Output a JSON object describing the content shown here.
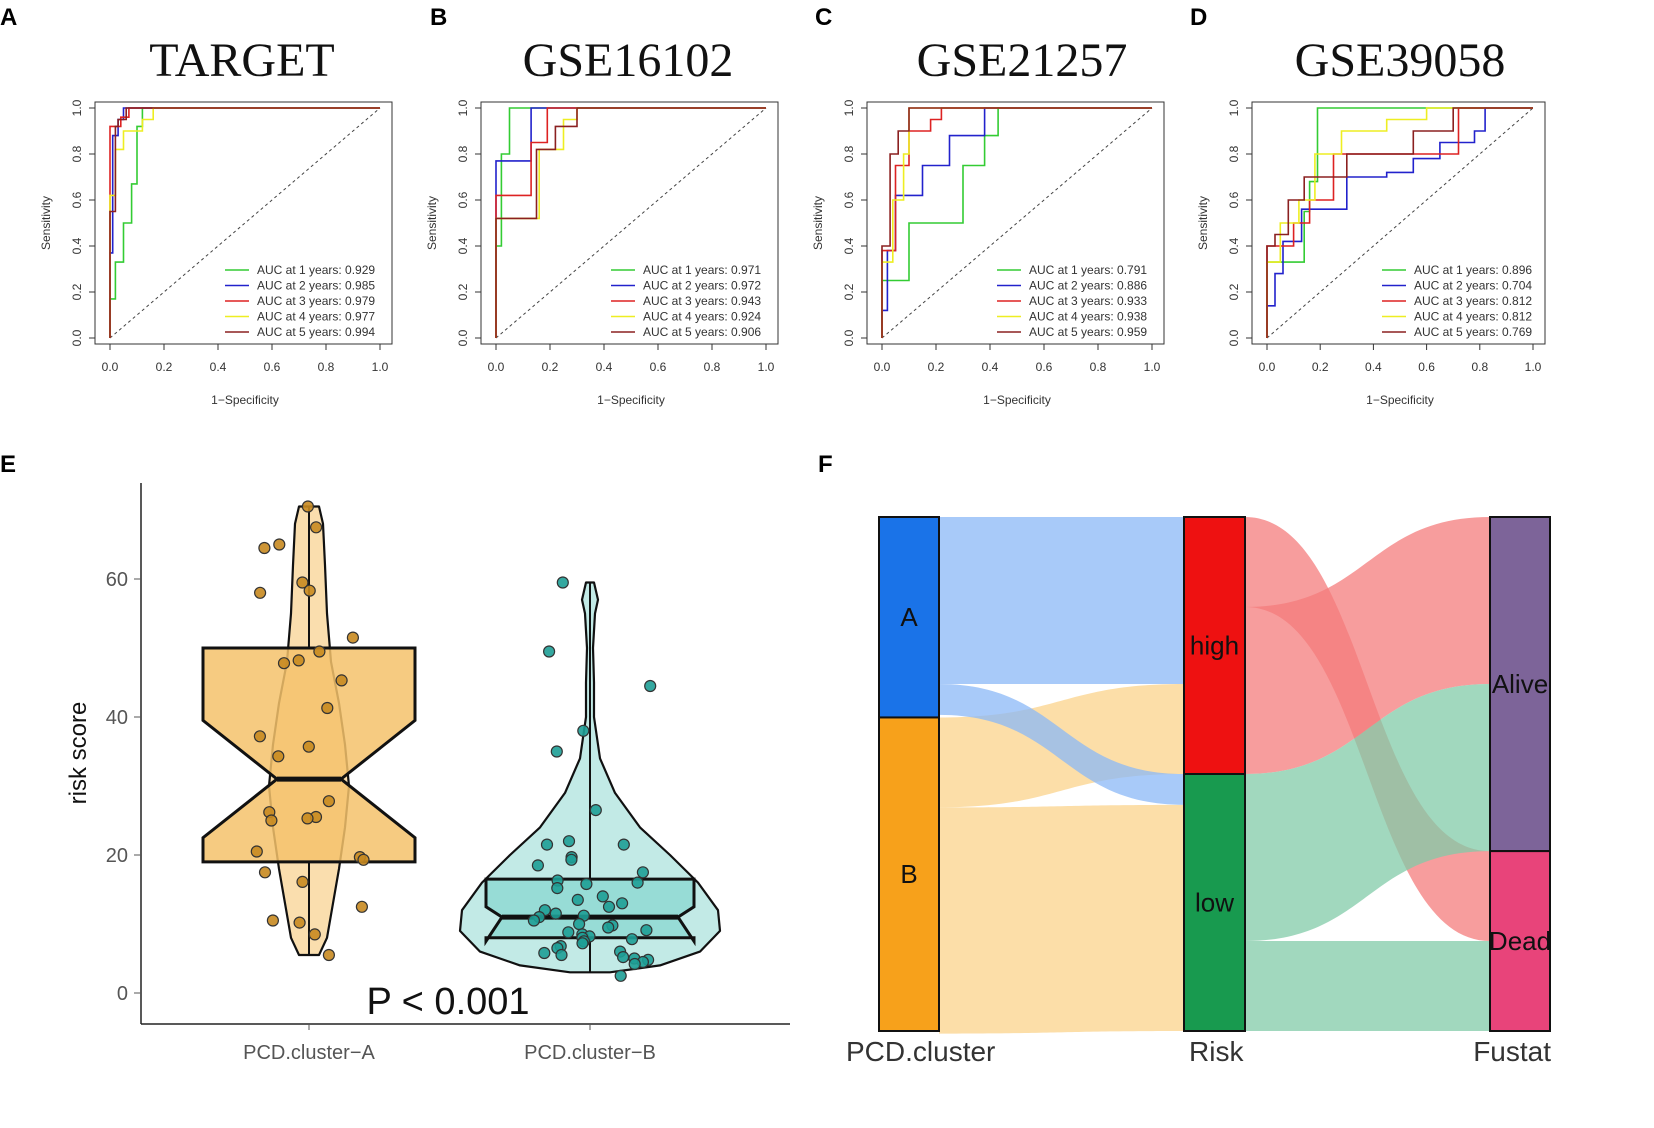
{
  "panels": {
    "A": "A",
    "B": "B",
    "C": "C",
    "D": "D",
    "E": "E",
    "F": "F"
  },
  "colors": {
    "year1": "#33cc33",
    "year2": "#2222cc",
    "year3": "#dd2222",
    "year4": "#eeee22",
    "year5": "#8b2020",
    "clusterA": "#f5c26b",
    "clusterA_dark": "#c88a20",
    "clusterB": "#8fd9d2",
    "clusterB_dark": "#1e9e96",
    "nodeA": "#1a73e8",
    "nodeB": "#f7a11b",
    "nodeHigh": "#ee1111",
    "nodeLow": "#189a4f",
    "nodeAlive": "#7d6499",
    "nodeDead": "#e8447a",
    "flowA": "#8bb8f7",
    "flowB": "#fbd38b",
    "flowHigh": "#f47c7c",
    "flowLow": "#82cba8"
  },
  "chart_data": [
    {
      "type": "line",
      "panel": "A",
      "title": "TARGET",
      "xlabel": "1−Specificity",
      "ylabel": "Sensitivity",
      "xlim": [
        0,
        1
      ],
      "ylim": [
        0,
        1
      ],
      "xticks": [
        "0.0",
        "0.2",
        "0.4",
        "0.6",
        "0.8",
        "1.0"
      ],
      "yticks": [
        "0.0",
        "0.2",
        "0.4",
        "0.6",
        "0.8",
        "1.0"
      ],
      "legend_position": "bottom-right",
      "series": [
        {
          "name": "AUC at 1 years: 0.929",
          "x": [
            0,
            0,
            0.02,
            0.02,
            0.05,
            0.05,
            0.08,
            0.08,
            0.1,
            0.1,
            0.12,
            0.12,
            1
          ],
          "y": [
            0,
            0.17,
            0.17,
            0.33,
            0.33,
            0.5,
            0.5,
            0.67,
            0.67,
            0.92,
            0.92,
            1,
            1
          ]
        },
        {
          "name": "AUC at 2 years: 0.985",
          "x": [
            0,
            0,
            0.01,
            0.01,
            0.03,
            0.03,
            0.05,
            0.05,
            0.08,
            1
          ],
          "y": [
            0,
            0.37,
            0.37,
            0.88,
            0.88,
            0.95,
            0.95,
            1,
            1,
            1
          ]
        },
        {
          "name": "AUC at 3 years: 0.979",
          "x": [
            0,
            0,
            0.04,
            0.04,
            0.07,
            0.07,
            0.12,
            1
          ],
          "y": [
            0,
            0.92,
            0.92,
            0.96,
            0.96,
            1,
            1,
            1
          ]
        },
        {
          "name": "AUC at 4 years: 0.977",
          "x": [
            0,
            0,
            0.02,
            0.02,
            0.05,
            0.05,
            0.12,
            0.12,
            0.16,
            0.16,
            1
          ],
          "y": [
            0,
            0.62,
            0.62,
            0.82,
            0.82,
            0.9,
            0.9,
            0.95,
            0.95,
            1,
            1
          ]
        },
        {
          "name": "AUC at 5 years: 0.994",
          "x": [
            0,
            0,
            0.02,
            0.02,
            0.03,
            0.03,
            0.06,
            0.06,
            1
          ],
          "y": [
            0,
            0.55,
            0.55,
            0.92,
            0.92,
            0.95,
            0.95,
            1,
            1
          ]
        }
      ]
    },
    {
      "type": "line",
      "panel": "B",
      "title": "GSE16102",
      "xlabel": "1−Specificity",
      "ylabel": "Sensitivity",
      "xlim": [
        0,
        1
      ],
      "ylim": [
        0,
        1
      ],
      "xticks": [
        "0.0",
        "0.2",
        "0.4",
        "0.6",
        "0.8",
        "1.0"
      ],
      "yticks": [
        "0.0",
        "0.2",
        "0.4",
        "0.6",
        "0.8",
        "1.0"
      ],
      "legend_position": "bottom-right",
      "series": [
        {
          "name": "AUC at 1 years: 0.971",
          "x": [
            0,
            0,
            0.02,
            0.02,
            0.05,
            0.05,
            0.1,
            0.1,
            1
          ],
          "y": [
            0,
            0.4,
            0.4,
            0.8,
            0.8,
            1,
            1,
            1,
            1
          ]
        },
        {
          "name": "AUC at 2 years: 0.972",
          "x": [
            0,
            0,
            0.13,
            0.13,
            1
          ],
          "y": [
            0,
            0.77,
            0.77,
            1,
            1
          ]
        },
        {
          "name": "AUC at 3 years: 0.943",
          "x": [
            0,
            0,
            0.13,
            0.13,
            0.19,
            0.19,
            1
          ],
          "y": [
            0,
            0.62,
            0.62,
            0.85,
            0.85,
            1,
            1
          ]
        },
        {
          "name": "AUC at 4 years: 0.924",
          "x": [
            0,
            0,
            0.16,
            0.16,
            0.25,
            0.25,
            0.3,
            0.3,
            1
          ],
          "y": [
            0,
            0.52,
            0.52,
            0.82,
            0.82,
            0.95,
            0.95,
            1,
            1
          ]
        },
        {
          "name": "AUC at 5 years: 0.906",
          "x": [
            0,
            0,
            0.15,
            0.15,
            0.22,
            0.22,
            0.3,
            0.3,
            1
          ],
          "y": [
            0,
            0.52,
            0.52,
            0.82,
            0.82,
            0.92,
            0.92,
            1,
            1
          ]
        }
      ]
    },
    {
      "type": "line",
      "panel": "C",
      "title": "GSE21257",
      "xlabel": "1−Specificity",
      "ylabel": "Sensitivity",
      "xlim": [
        0,
        1
      ],
      "ylim": [
        0,
        1
      ],
      "xticks": [
        "0.0",
        "0.2",
        "0.4",
        "0.6",
        "0.8",
        "1.0"
      ],
      "yticks": [
        "0.0",
        "0.2",
        "0.4",
        "0.6",
        "0.8",
        "1.0"
      ],
      "legend_position": "bottom-right",
      "series": [
        {
          "name": "AUC at 1 years: 0.791",
          "x": [
            0,
            0,
            0.1,
            0.1,
            0.3,
            0.3,
            0.38,
            0.38,
            0.43,
            0.43,
            1
          ],
          "y": [
            0,
            0.25,
            0.25,
            0.5,
            0.5,
            0.75,
            0.75,
            0.88,
            0.88,
            1,
            1
          ]
        },
        {
          "name": "AUC at 2 years: 0.886",
          "x": [
            0,
            0,
            0.02,
            0.02,
            0.05,
            0.05,
            0.15,
            0.15,
            0.25,
            0.25,
            0.38,
            0.38,
            1
          ],
          "y": [
            0,
            0.12,
            0.12,
            0.38,
            0.38,
            0.62,
            0.62,
            0.75,
            0.75,
            0.88,
            0.88,
            1,
            1
          ]
        },
        {
          "name": "AUC at 3 years: 0.933",
          "x": [
            0,
            0,
            0.05,
            0.05,
            0.1,
            0.1,
            0.18,
            0.18,
            0.22,
            0.22,
            1
          ],
          "y": [
            0,
            0.38,
            0.38,
            0.75,
            0.75,
            0.9,
            0.9,
            0.95,
            0.95,
            1,
            1
          ]
        },
        {
          "name": "AUC at 4 years: 0.938",
          "x": [
            0,
            0,
            0.04,
            0.04,
            0.08,
            0.08,
            0.1,
            0.1,
            1
          ],
          "y": [
            0,
            0.33,
            0.33,
            0.6,
            0.6,
            0.8,
            0.8,
            1,
            1
          ]
        },
        {
          "name": "AUC at 5 years: 0.959",
          "x": [
            0,
            0,
            0.03,
            0.03,
            0.06,
            0.06,
            0.1,
            0.1,
            1
          ],
          "y": [
            0,
            0.4,
            0.4,
            0.8,
            0.8,
            0.9,
            0.9,
            1,
            1
          ]
        }
      ]
    },
    {
      "type": "line",
      "panel": "D",
      "title": "GSE39058",
      "xlabel": "1−Specificity",
      "ylabel": "Sensitivity",
      "xlim": [
        0,
        1
      ],
      "ylim": [
        0,
        1
      ],
      "xticks": [
        "0.0",
        "0.2",
        "0.4",
        "0.6",
        "0.8",
        "1.0"
      ],
      "yticks": [
        "0.0",
        "0.2",
        "0.4",
        "0.6",
        "0.8",
        "1.0"
      ],
      "legend_position": "bottom-right",
      "series": [
        {
          "name": "AUC at 1 years: 0.896",
          "x": [
            0,
            0,
            0.14,
            0.14,
            0.16,
            0.16,
            0.19,
            0.19,
            1
          ],
          "y": [
            0,
            0.33,
            0.33,
            0.55,
            0.55,
            0.68,
            0.68,
            1,
            1
          ]
        },
        {
          "name": "AUC at 2 years: 0.704",
          "x": [
            0,
            0,
            0.03,
            0.03,
            0.06,
            0.06,
            0.13,
            0.13,
            0.3,
            0.3,
            0.45,
            0.45,
            0.55,
            0.55,
            0.65,
            0.65,
            0.78,
            0.78,
            0.82,
            0.82,
            1
          ],
          "y": [
            0,
            0.14,
            0.14,
            0.28,
            0.28,
            0.42,
            0.42,
            0.56,
            0.56,
            0.7,
            0.7,
            0.72,
            0.72,
            0.78,
            0.78,
            0.85,
            0.85,
            0.9,
            0.9,
            1,
            1
          ]
        },
        {
          "name": "AUC at 3 years: 0.812",
          "x": [
            0,
            0,
            0.1,
            0.1,
            0.16,
            0.16,
            0.25,
            0.25,
            0.72,
            0.72,
            1
          ],
          "y": [
            0,
            0.4,
            0.4,
            0.5,
            0.5,
            0.6,
            0.6,
            0.8,
            0.8,
            1,
            1
          ]
        },
        {
          "name": "AUC at 4 years: 0.812",
          "x": [
            0,
            0,
            0.05,
            0.05,
            0.12,
            0.12,
            0.18,
            0.18,
            0.28,
            0.28,
            0.45,
            0.45,
            0.6,
            0.6,
            0.72,
            0.72,
            1
          ],
          "y": [
            0,
            0.33,
            0.33,
            0.5,
            0.5,
            0.6,
            0.6,
            0.8,
            0.8,
            0.9,
            0.9,
            0.95,
            0.95,
            1,
            1,
            1,
            1
          ]
        },
        {
          "name": "AUC at 5 years: 0.769",
          "x": [
            0,
            0,
            0.03,
            0.03,
            0.08,
            0.08,
            0.14,
            0.14,
            0.3,
            0.3,
            0.55,
            0.55,
            0.7,
            0.7,
            1
          ],
          "y": [
            0,
            0.4,
            0.4,
            0.45,
            0.45,
            0.6,
            0.6,
            0.7,
            0.7,
            0.8,
            0.8,
            0.9,
            0.9,
            1,
            1
          ]
        }
      ]
    },
    {
      "type": "violin",
      "panel": "E",
      "title": "",
      "xlabel": "",
      "ylabel": "risk score",
      "ylim": [
        -5,
        75
      ],
      "yticks": [
        0,
        20,
        40,
        60
      ],
      "categories": [
        "PCD.cluster−A",
        "PCD.cluster−B"
      ],
      "annotation": "P < 0.001",
      "boxes": [
        {
          "name": "PCD.cluster−A",
          "q1": 19,
          "median": 31,
          "q3": 50,
          "notch_low": 22.5,
          "notch_high": 39.5,
          "min": 5.5,
          "max": 70.5
        },
        {
          "name": "PCD.cluster−B",
          "q1": 8,
          "median": 11,
          "q3": 16.5,
          "notch_low": 7.5,
          "notch_high": 12.5,
          "min": 3,
          "max": 59.5
        }
      ],
      "points": [
        {
          "group": "PCD.cluster−A",
          "values": [
            70.5,
            67.5,
            64.5,
            65,
            59.5,
            58.3,
            58,
            51.5,
            49.5,
            48.2,
            47.8,
            45.3,
            41.3,
            37.2,
            35.7,
            34.3,
            27.8,
            26.2,
            25.5,
            25.3,
            25,
            20.5,
            19.7,
            19.3,
            17.5,
            16.1,
            12.5,
            10.5,
            10.2,
            8.5,
            5.5
          ]
        },
        {
          "group": "PCD.cluster−B",
          "values": [
            59.5,
            49.5,
            44.5,
            38,
            35,
            26.5,
            22,
            21.5,
            21.5,
            19.7,
            19.3,
            18.5,
            17.5,
            16.3,
            16,
            15.8,
            15.2,
            14,
            13.5,
            13,
            12.5,
            12,
            11.5,
            11.2,
            11,
            10.5,
            10,
            9.8,
            9.5,
            9.1,
            8.8,
            8.5,
            8.2,
            8,
            7.8,
            7.5,
            7.2,
            6.8,
            6.5,
            6,
            5.8,
            5.5,
            5.2,
            5,
            4.8,
            4.5,
            4.2,
            2.5
          ]
        }
      ]
    },
    {
      "type": "sankey",
      "panel": "F",
      "axes": [
        "PCD.cluster",
        "Risk",
        "Fustat"
      ],
      "nodes": [
        {
          "axis": "PCD.cluster",
          "name": "A",
          "value": 39
        },
        {
          "axis": "PCD.cluster",
          "name": "B",
          "value": 61
        },
        {
          "axis": "Risk",
          "name": "high",
          "value": 50
        },
        {
          "axis": "Risk",
          "name": "low",
          "value": 50
        },
        {
          "axis": "Fustat",
          "name": "Alive",
          "value": 65
        },
        {
          "axis": "Fustat",
          "name": "Dead",
          "value": 35
        }
      ],
      "links": [
        {
          "source": "A",
          "target": "high",
          "value": 32.5
        },
        {
          "source": "A",
          "target": "low",
          "value": 6
        },
        {
          "source": "B",
          "target": "high",
          "value": 17.5
        },
        {
          "source": "B",
          "target": "low",
          "value": 44
        },
        {
          "source": "high",
          "target": "Dead",
          "value": 17.5
        },
        {
          "source": "high",
          "target": "Alive",
          "value": 32.5
        },
        {
          "source": "low",
          "target": "Alive",
          "value": 32.5
        },
        {
          "source": "low",
          "target": "Dead",
          "value": 17.5
        }
      ]
    }
  ]
}
